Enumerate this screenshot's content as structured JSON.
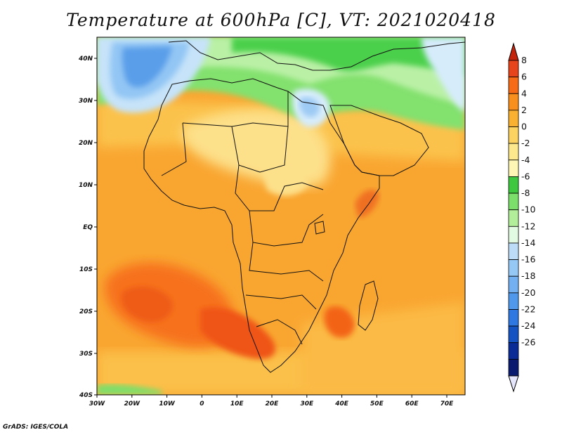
{
  "title": "Temperature at 600hPa [C], VT: 2021020418",
  "credit": "GrADS: IGES/COLA",
  "map": {
    "lon_labels": [
      "30W",
      "20W",
      "10W",
      "0",
      "10E",
      "20E",
      "30E",
      "40E",
      "50E",
      "60E",
      "70E"
    ],
    "lat_labels": [
      "40N",
      "30N",
      "20N",
      "10N",
      "EQ",
      "10S",
      "20S",
      "30S",
      "40S"
    ]
  },
  "colorbar": {
    "labels": [
      "8",
      "6",
      "4",
      "2",
      "0",
      "-2",
      "-4",
      "-6",
      "-8",
      "-10",
      "-12",
      "-14",
      "-16",
      "-18",
      "-20",
      "-22",
      "-24",
      "-26"
    ],
    "colors": [
      "#e8441c",
      "#f76a16",
      "#f98f1c",
      "#fab132",
      "#fcd261",
      "#fde88e",
      "#fdf6b5",
      "#3ec840",
      "#7ddf6b",
      "#b3ee9b",
      "#e2f9e2",
      "#bcdcf8",
      "#96c8f5",
      "#72b0f2",
      "#4f98ec",
      "#2f78e2",
      "#1653c2",
      "#0a2b96",
      "#0a1a6e"
    ],
    "over_color": "#c5240c",
    "under_color": "#e5e6fb"
  }
}
